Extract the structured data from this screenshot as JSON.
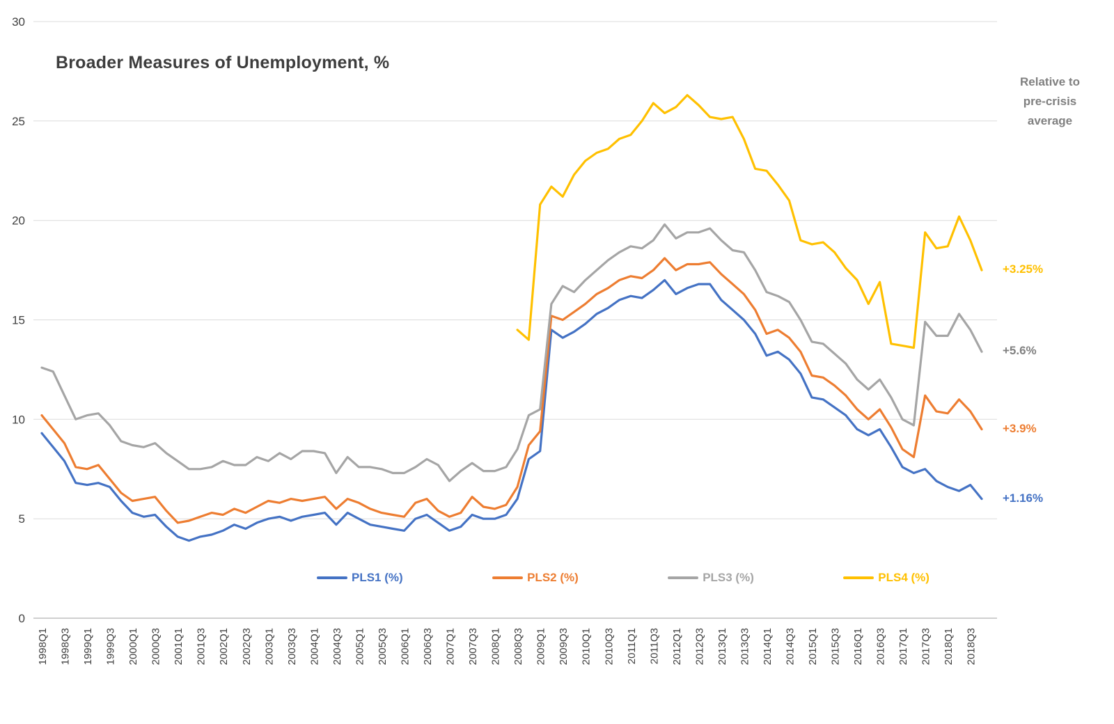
{
  "chart_data": {
    "type": "line",
    "title": "Broader Measures of Unemployment, %",
    "xlabel": "",
    "ylabel": "",
    "ylim": [
      0,
      30
    ],
    "y_ticks": [
      0,
      5,
      10,
      15,
      20,
      25,
      30
    ],
    "grid": true,
    "legend_position": "bottom-center",
    "x_tick_step": 2,
    "right_note_lines": [
      "Relative to",
      "pre-crisis",
      "average"
    ],
    "x": [
      "1998Q1",
      "1998Q2",
      "1998Q3",
      "1998Q4",
      "1999Q1",
      "1999Q2",
      "1999Q3",
      "1999Q4",
      "2000Q1",
      "2000Q2",
      "2000Q3",
      "2000Q4",
      "2001Q1",
      "2001Q2",
      "2001Q3",
      "2001Q4",
      "2002Q1",
      "2002Q2",
      "2002Q3",
      "2002Q4",
      "2003Q1",
      "2003Q2",
      "2003Q3",
      "2003Q4",
      "2004Q1",
      "2004Q2",
      "2004Q3",
      "2004Q4",
      "2005Q1",
      "2005Q2",
      "2005Q3",
      "2005Q4",
      "2006Q1",
      "2006Q2",
      "2006Q3",
      "2006Q4",
      "2007Q1",
      "2007Q2",
      "2007Q3",
      "2007Q4",
      "2008Q1",
      "2008Q2",
      "2008Q3",
      "2008Q4",
      "2009Q1",
      "2009Q2",
      "2009Q3",
      "2009Q4",
      "2010Q1",
      "2010Q2",
      "2010Q3",
      "2010Q4",
      "2011Q1",
      "2011Q2",
      "2011Q3",
      "2011Q4",
      "2012Q1",
      "2012Q2",
      "2012Q3",
      "2012Q4",
      "2013Q1",
      "2013Q2",
      "2013Q3",
      "2013Q4",
      "2014Q1",
      "2014Q2",
      "2014Q3",
      "2014Q4",
      "2015Q1",
      "2015Q2",
      "2015Q3",
      "2015Q4",
      "2016Q1",
      "2016Q2",
      "2016Q3",
      "2016Q4",
      "2017Q1",
      "2017Q2",
      "2017Q3",
      "2017Q4",
      "2018Q1",
      "2018Q2",
      "2018Q3",
      "2018Q4"
    ],
    "series": [
      {
        "name": "PLS1 (%)",
        "color": "#4472C4",
        "values": [
          9.3,
          8.6,
          7.9,
          6.8,
          6.7,
          6.8,
          6.6,
          5.9,
          5.3,
          5.1,
          5.2,
          4.6,
          4.1,
          3.9,
          4.1,
          4.2,
          4.4,
          4.7,
          4.5,
          4.8,
          5.0,
          5.1,
          4.9,
          5.1,
          5.2,
          5.3,
          4.7,
          5.3,
          5.0,
          4.7,
          4.6,
          4.5,
          4.4,
          5.0,
          5.2,
          4.8,
          4.4,
          4.6,
          5.2,
          5.0,
          5.0,
          5.2,
          6.0,
          8.0,
          8.4,
          14.5,
          14.1,
          14.4,
          14.8,
          15.3,
          15.6,
          16.0,
          16.2,
          16.1,
          16.5,
          17.0,
          16.3,
          16.6,
          16.8,
          16.8,
          16.0,
          15.5,
          15.0,
          14.3,
          13.2,
          13.4,
          13.0,
          12.3,
          11.1,
          11.0,
          10.6,
          10.2,
          9.5,
          9.2,
          9.5,
          8.6,
          7.6,
          7.3,
          7.5,
          6.9,
          6.6,
          6.4,
          6.7,
          6.0
        ]
      },
      {
        "name": "PLS2 (%)",
        "color": "#ED7D31",
        "values": [
          10.2,
          9.5,
          8.8,
          7.6,
          7.5,
          7.7,
          7.0,
          6.3,
          5.9,
          6.0,
          6.1,
          5.4,
          4.8,
          4.9,
          5.1,
          5.3,
          5.2,
          5.5,
          5.3,
          5.6,
          5.9,
          5.8,
          6.0,
          5.9,
          6.0,
          6.1,
          5.5,
          6.0,
          5.8,
          5.5,
          5.3,
          5.2,
          5.1,
          5.8,
          6.0,
          5.4,
          5.1,
          5.3,
          6.1,
          5.6,
          5.5,
          5.7,
          6.6,
          8.7,
          9.4,
          15.2,
          15.0,
          15.4,
          15.8,
          16.3,
          16.6,
          17.0,
          17.2,
          17.1,
          17.5,
          18.1,
          17.5,
          17.8,
          17.8,
          17.9,
          17.3,
          16.8,
          16.3,
          15.5,
          14.3,
          14.5,
          14.1,
          13.4,
          12.2,
          12.1,
          11.7,
          11.2,
          10.5,
          10.0,
          10.5,
          9.6,
          8.5,
          8.1,
          11.2,
          10.4,
          10.3,
          11.0,
          10.4,
          9.5
        ]
      },
      {
        "name": "PLS3 (%)",
        "color": "#A5A5A5",
        "values": [
          12.6,
          12.4,
          11.2,
          10.0,
          10.2,
          10.3,
          9.7,
          8.9,
          8.7,
          8.6,
          8.8,
          8.3,
          7.9,
          7.5,
          7.5,
          7.6,
          7.9,
          7.7,
          7.7,
          8.1,
          7.9,
          8.3,
          8.0,
          8.4,
          8.4,
          8.3,
          7.3,
          8.1,
          7.6,
          7.6,
          7.5,
          7.3,
          7.3,
          7.6,
          8.0,
          7.7,
          6.9,
          7.4,
          7.8,
          7.4,
          7.4,
          7.6,
          8.5,
          10.2,
          10.5,
          15.8,
          16.7,
          16.4,
          17.0,
          17.5,
          18.0,
          18.4,
          18.7,
          18.6,
          19.0,
          19.8,
          19.1,
          19.4,
          19.4,
          19.6,
          19.0,
          18.5,
          18.4,
          17.5,
          16.4,
          16.2,
          15.9,
          15.0,
          13.9,
          13.8,
          13.3,
          12.8,
          12.0,
          11.5,
          12.0,
          11.1,
          10.0,
          9.7,
          14.9,
          14.2,
          14.2,
          15.3,
          14.5,
          13.4
        ]
      },
      {
        "name": "PLS4 (%)",
        "color": "#FFC000",
        "values": [
          null,
          null,
          null,
          null,
          null,
          null,
          null,
          null,
          null,
          null,
          null,
          null,
          null,
          null,
          null,
          null,
          null,
          null,
          null,
          null,
          null,
          null,
          null,
          null,
          null,
          null,
          null,
          null,
          null,
          null,
          null,
          null,
          null,
          null,
          null,
          null,
          null,
          null,
          null,
          null,
          null,
          null,
          14.5,
          14.0,
          20.8,
          21.7,
          21.2,
          22.3,
          23.0,
          23.4,
          23.6,
          24.1,
          24.3,
          25.0,
          25.9,
          25.4,
          25.7,
          26.3,
          25.8,
          25.2,
          25.1,
          25.2,
          24.1,
          22.6,
          22.5,
          21.8,
          21.0,
          19.0,
          18.8,
          18.9,
          18.4,
          17.6,
          17.0,
          15.8,
          16.9,
          13.8,
          13.7,
          13.6,
          19.4,
          18.6,
          18.7,
          20.2,
          19.0,
          17.5
        ]
      }
    ],
    "annotations": [
      {
        "text": "+3.25%",
        "series": "PLS4 (%)",
        "color": "#FFC000"
      },
      {
        "text": "+5.6%",
        "series": "PLS3 (%)",
        "color": "#808080"
      },
      {
        "text": "+3.9%",
        "series": "PLS2 (%)",
        "color": "#ED7D31"
      },
      {
        "text": "+1.16%",
        "series": "PLS1 (%)",
        "color": "#4472C4"
      }
    ]
  }
}
